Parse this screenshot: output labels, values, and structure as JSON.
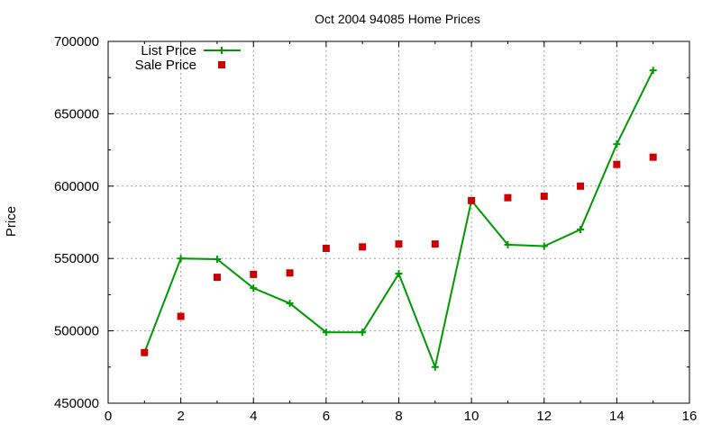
{
  "chart_data": {
    "type": "line",
    "title": "Oct 2004 94085 Home Prices",
    "xlabel": "",
    "ylabel": "Price",
    "xlim": [
      0,
      16
    ],
    "ylim": [
      450000,
      700000
    ],
    "x_ticks": [
      0,
      2,
      4,
      6,
      8,
      10,
      12,
      14,
      16
    ],
    "y_ticks": [
      450000,
      500000,
      550000,
      600000,
      650000,
      700000
    ],
    "x_tick_labels": [
      "0",
      "2",
      "4",
      "6",
      "8",
      "10",
      "12",
      "14",
      "16"
    ],
    "y_tick_labels": [
      "450000",
      "500000",
      "550000",
      "600000",
      "650000",
      "700000"
    ],
    "grid": true,
    "legend_position": "top-left",
    "series": [
      {
        "name": "List Price",
        "style": "linespoints",
        "marker": "plus",
        "color": "#009900",
        "points": [
          [
            1,
            485000
          ],
          [
            2,
            550000
          ],
          [
            3,
            549500
          ],
          [
            4,
            529500
          ],
          [
            5,
            519000
          ],
          [
            6,
            499000
          ],
          [
            7,
            499000
          ],
          [
            8,
            539500
          ],
          [
            9,
            475000
          ],
          [
            10,
            590000
          ],
          [
            11,
            559500
          ],
          [
            12,
            558500
          ],
          [
            13,
            570000
          ],
          [
            14,
            629000
          ],
          [
            15,
            680000
          ]
        ]
      },
      {
        "name": "Sale Price",
        "style": "points",
        "marker": "square",
        "color": "#cc0000",
        "points": [
          [
            1,
            485000
          ],
          [
            2,
            510000
          ],
          [
            3,
            537000
          ],
          [
            4,
            539000
          ],
          [
            5,
            540000
          ],
          [
            6,
            557000
          ],
          [
            7,
            558000
          ],
          [
            8,
            560000
          ],
          [
            9,
            560000
          ],
          [
            10,
            590000
          ],
          [
            11,
            592000
          ],
          [
            12,
            593000
          ],
          [
            13,
            600000
          ],
          [
            14,
            615000
          ],
          [
            15,
            620000
          ]
        ]
      }
    ]
  }
}
